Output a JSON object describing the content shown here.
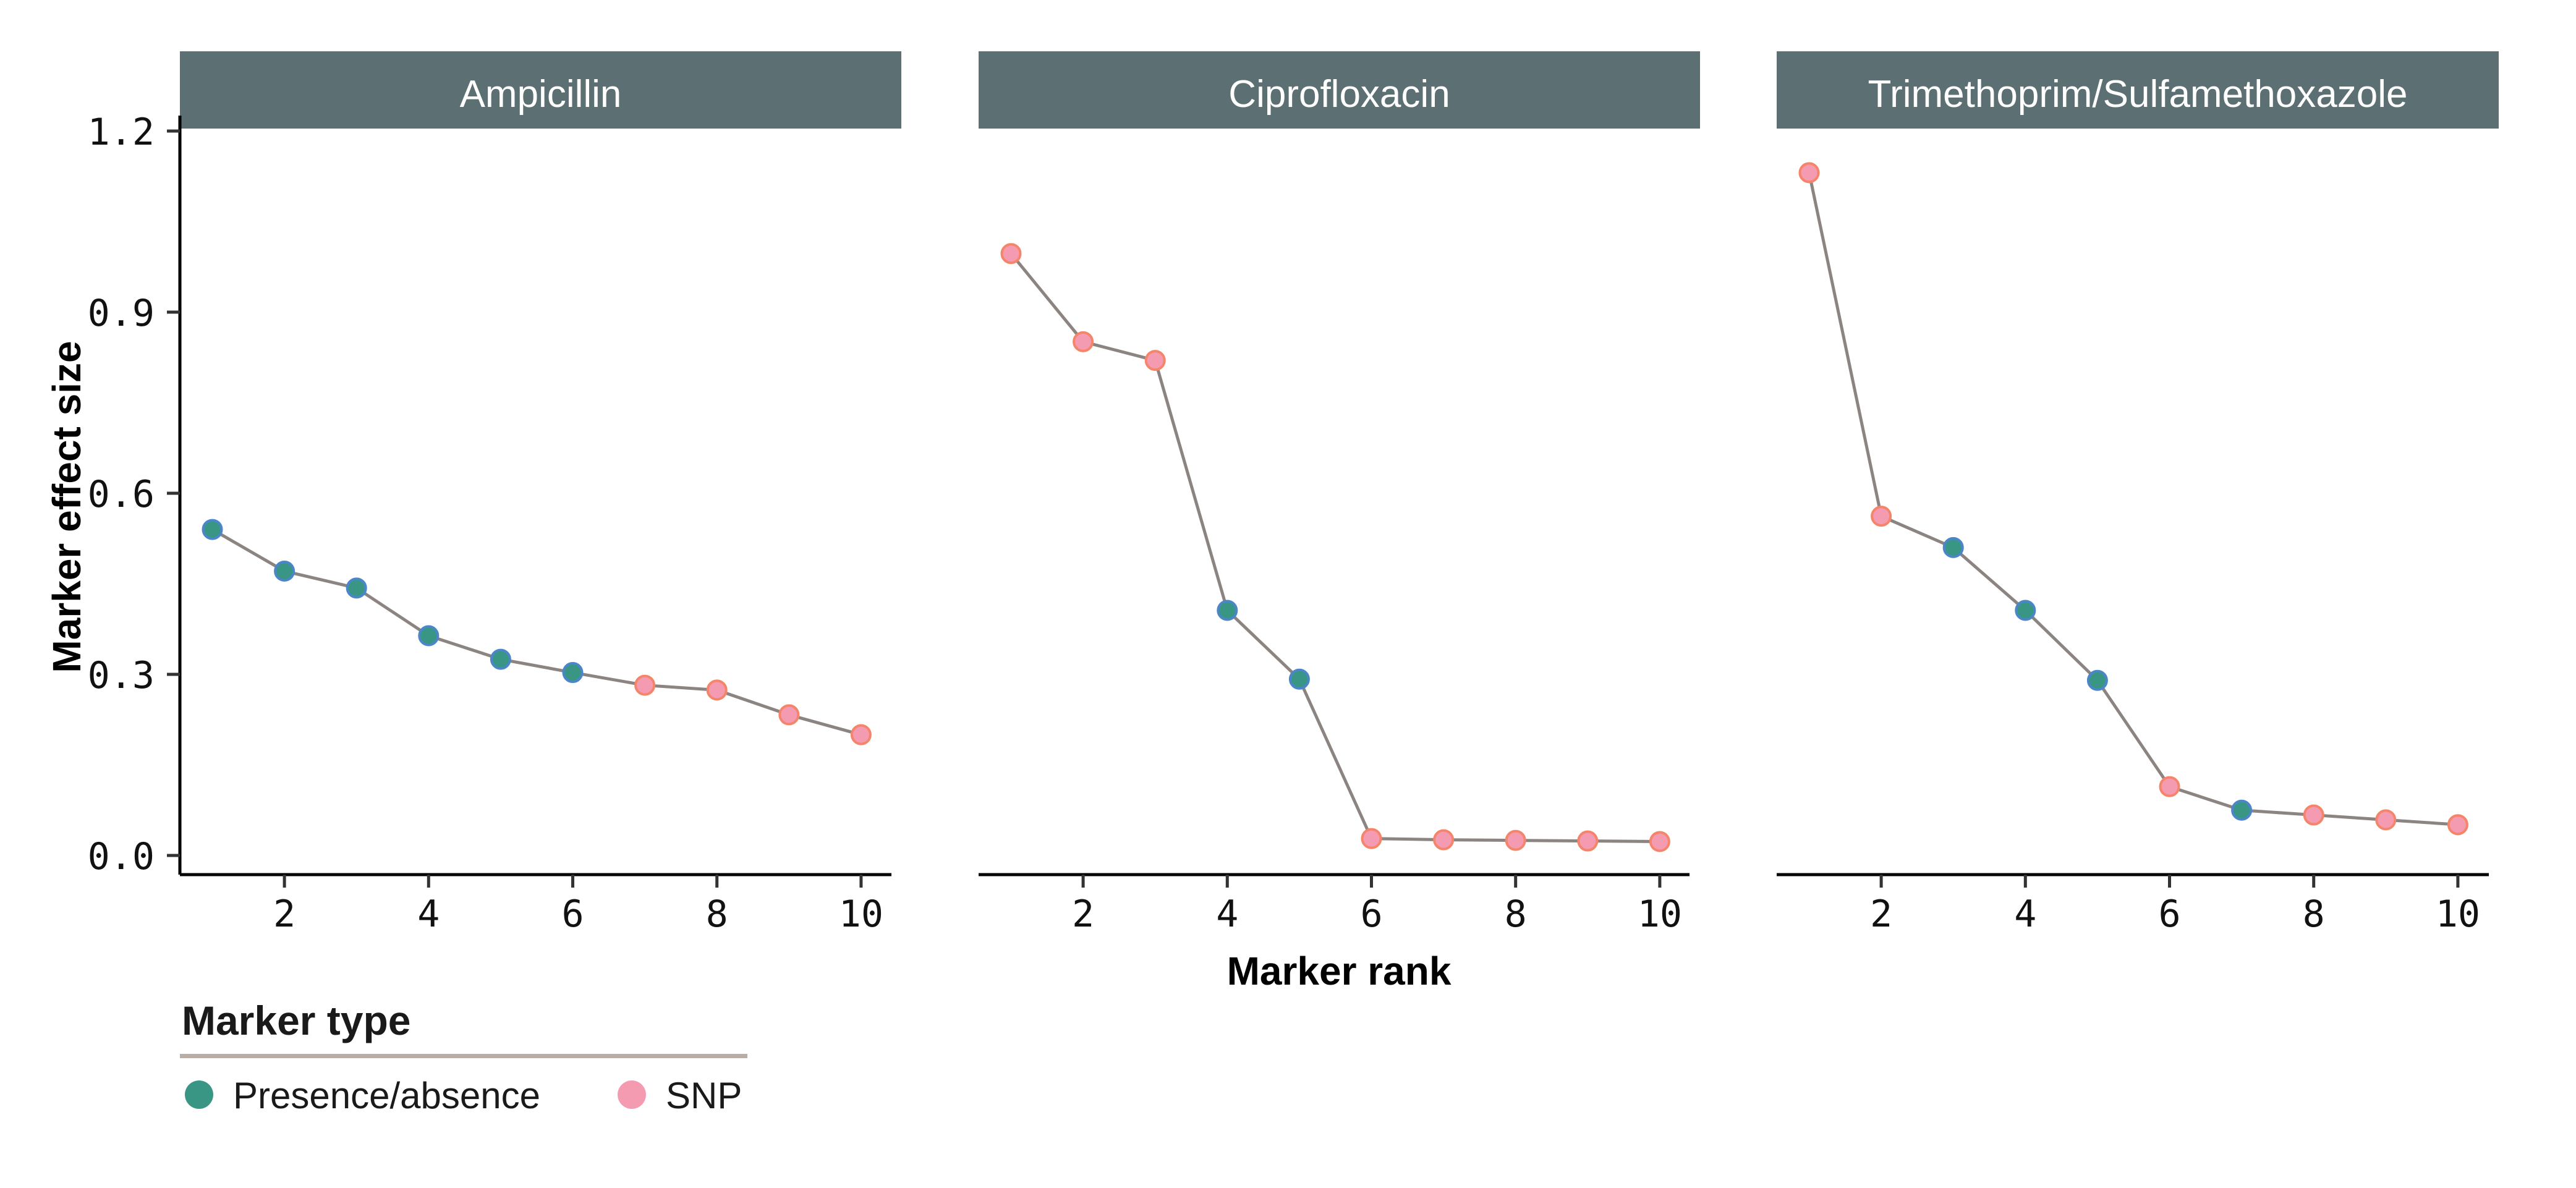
{
  "chart_data": {
    "type": "line",
    "layout": "facet_wrap_3_panels",
    "xlabel": "Marker rank",
    "ylabel": "Marker effect size",
    "ylim": [
      0,
      1.2
    ],
    "yticks": [
      0.0,
      0.3,
      0.6,
      0.9,
      1.2
    ],
    "ytick_labels": [
      "0.0",
      "0.3",
      "0.6",
      "0.9",
      "1.2"
    ],
    "xticks": [
      2,
      4,
      6,
      8,
      10
    ],
    "xtick_labels": [
      "2",
      "4",
      "6",
      "8",
      "10"
    ],
    "grid": false,
    "legend": {
      "title": "Marker type",
      "position": "bottom-left",
      "entries": [
        {
          "label": "Presence/absence",
          "key": "PA",
          "color": "#3a9684"
        },
        {
          "label": "SNP",
          "key": "SNP",
          "color": "#f59bb1"
        }
      ]
    },
    "panels": [
      {
        "title": "Ampicillin",
        "x": [
          1,
          2,
          3,
          4,
          5,
          6,
          7,
          8,
          9,
          10
        ],
        "y": [
          0.54,
          0.471,
          0.443,
          0.364,
          0.325,
          0.303,
          0.282,
          0.274,
          0.233,
          0.2
        ],
        "marker_type": [
          "PA",
          "PA",
          "PA",
          "PA",
          "PA",
          "PA",
          "SNP",
          "SNP",
          "SNP",
          "SNP"
        ]
      },
      {
        "title": "Ciprofloxacin",
        "x": [
          1,
          2,
          3,
          4,
          5,
          6,
          7,
          8,
          9,
          10
        ],
        "y": [
          0.997,
          0.851,
          0.82,
          0.406,
          0.292,
          0.028,
          0.026,
          0.025,
          0.024,
          0.023
        ],
        "marker_type": [
          "SNP",
          "SNP",
          "SNP",
          "PA",
          "PA",
          "SNP",
          "SNP",
          "SNP",
          "SNP",
          "SNP"
        ]
      },
      {
        "title": "Trimethoprim/Sulfamethoxazole",
        "x": [
          1,
          2,
          3,
          4,
          5,
          6,
          7,
          8,
          9,
          10
        ],
        "y": [
          1.131,
          0.562,
          0.51,
          0.406,
          0.29,
          0.114,
          0.075,
          0.067,
          0.059,
          0.051
        ],
        "marker_type": [
          "SNP",
          "SNP",
          "PA",
          "PA",
          "PA",
          "SNP",
          "PA",
          "SNP",
          "SNP",
          "SNP"
        ]
      }
    ]
  },
  "colors": {
    "strip_background": "#5c7073",
    "strip_text": "#ffffff",
    "line": "#8c8480",
    "axis": "#000000",
    "tick": "#333333",
    "pa_fill": "#3a9684",
    "pa_outline": "#4a86c8",
    "snp_fill": "#f59bb1",
    "snp_outline": "#f4856a",
    "legend_divider": "#b8aea6"
  },
  "panels": [
    {
      "title": "Ampicillin"
    },
    {
      "title": "Ciprofloxacin"
    },
    {
      "title": "Trimethoprim/Sulfamethoxazole"
    }
  ],
  "axes": {
    "xlabel": "Marker rank",
    "ylabel": "Marker effect size"
  },
  "legend": {
    "title": "Marker type",
    "items": [
      {
        "label": "Presence/absence"
      },
      {
        "label": "SNP"
      }
    ]
  }
}
